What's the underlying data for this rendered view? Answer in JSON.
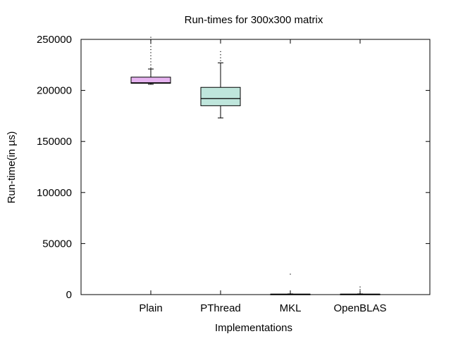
{
  "chart_data": {
    "type": "box",
    "title": "Run-times for 300x300 matrix",
    "xlabel": "Implementations",
    "ylabel": "Run-time(in µs)",
    "ylim": [
      0,
      250000
    ],
    "yticks": [
      0,
      50000,
      100000,
      150000,
      200000,
      250000
    ],
    "ytick_labels": [
      "0",
      "50000",
      "100000",
      "150000",
      "200000",
      "250000"
    ],
    "grid": false,
    "categories": [
      "Plain",
      "PThread",
      "MKL",
      "OpenBLAS"
    ],
    "boxes": [
      {
        "category": "Plain",
        "color": "#E6B3F0",
        "min": 206000,
        "q1": 207000,
        "median": 207500,
        "q3": 213000,
        "max": 221000,
        "outliers": [
          222000,
          225000,
          228000,
          231000,
          234000,
          237000,
          240000,
          243000,
          246000,
          249000,
          252000
        ]
      },
      {
        "category": "PThread",
        "color": "#BFE6DC",
        "min": 173000,
        "q1": 185000,
        "median": 192000,
        "q3": 203000,
        "max": 227000,
        "outliers": [
          229000,
          232000,
          235000,
          238000
        ]
      },
      {
        "category": "MKL",
        "color": "#C8A2DC",
        "min": 200,
        "q1": 300,
        "median": 400,
        "q3": 500,
        "max": 700,
        "outliers": [
          20000
        ]
      },
      {
        "category": "OpenBLAS",
        "color": "#C8A2DC",
        "min": 200,
        "q1": 300,
        "median": 400,
        "q3": 500,
        "max": 700,
        "outliers": [
          5000,
          7500
        ]
      }
    ]
  }
}
